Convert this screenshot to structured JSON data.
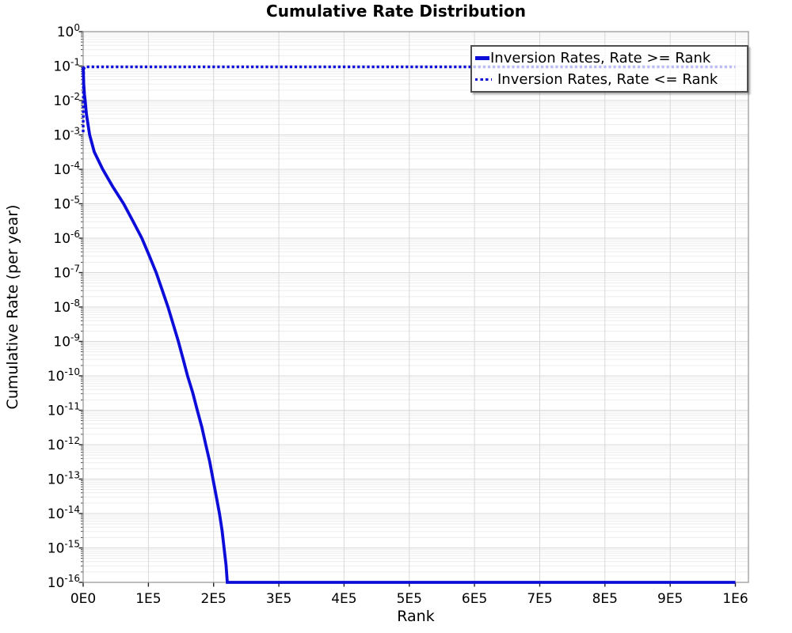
{
  "chart_data": {
    "type": "line",
    "title": "Cumulative Rate Distribution",
    "xlabel": "Rank",
    "ylabel": "Cumulative Rate (per year)",
    "x_axis": {
      "min": 0,
      "max": 1020000,
      "ticks": [
        {
          "value": 0,
          "label": "0E0"
        },
        {
          "value": 100000,
          "label": "1E5"
        },
        {
          "value": 200000,
          "label": "2E5"
        },
        {
          "value": 300000,
          "label": "3E5"
        },
        {
          "value": 400000,
          "label": "4E5"
        },
        {
          "value": 500000,
          "label": "5E5"
        },
        {
          "value": 600000,
          "label": "6E5"
        },
        {
          "value": 700000,
          "label": "7E5"
        },
        {
          "value": 800000,
          "label": "8E5"
        },
        {
          "value": 900000,
          "label": "9E5"
        },
        {
          "value": 1000000,
          "label": "1E6"
        }
      ]
    },
    "y_axis": {
      "scale": "log",
      "base_label": "10",
      "exponents": [
        0,
        -1,
        -2,
        -3,
        -4,
        -5,
        -6,
        -7,
        -8,
        -9,
        -10,
        -11,
        -12,
        -13,
        -14,
        -15,
        -16
      ]
    },
    "grid": {
      "major_color": "#d8d8d8",
      "minor_color": "#ededed",
      "border_color": "#9a9a9a",
      "tick_color": "#222222"
    },
    "legend": {
      "position": "top-right"
    },
    "series": [
      {
        "name": "Inversion Rates, Rate >= Rank",
        "style": "solid",
        "color": "#0d0dd9",
        "points": [
          [
            0,
            0.095
          ],
          [
            800,
            0.03
          ],
          [
            2000,
            0.015
          ],
          [
            3200,
            0.0095
          ],
          [
            5000,
            0.004
          ],
          [
            10000,
            0.001
          ],
          [
            17000,
            0.00032
          ],
          [
            30000,
            0.0001
          ],
          [
            45000,
            3.2e-05
          ],
          [
            62000,
            1e-05
          ],
          [
            76000,
            3.2e-06
          ],
          [
            90000,
            1e-06
          ],
          [
            101000,
            3.2e-07
          ],
          [
            112000,
            1e-07
          ],
          [
            121000,
            3.2e-08
          ],
          [
            130000,
            1e-08
          ],
          [
            138000,
            3.2e-09
          ],
          [
            146000,
            1e-09
          ],
          [
            153000,
            3.2e-10
          ],
          [
            160000,
            1e-10
          ],
          [
            168000,
            3.2e-11
          ],
          [
            175000,
            1e-11
          ],
          [
            182000,
            3.2e-12
          ],
          [
            188000,
            1e-12
          ],
          [
            194000,
            3.2e-13
          ],
          [
            199000,
            1e-13
          ],
          [
            204000,
            3.2e-14
          ],
          [
            209000,
            1e-14
          ],
          [
            213000,
            3.2e-15
          ],
          [
            216000,
            1e-15
          ],
          [
            219000,
            3.2e-16
          ],
          [
            221000,
            1e-16
          ],
          [
            1000000,
            1e-16
          ]
        ]
      },
      {
        "name": "Inversion Rates, Rate <= Rank",
        "style": "dotted",
        "color": "#0d0dd9",
        "points": [
          [
            0,
            0.0012
          ],
          [
            400,
            0.04
          ],
          [
            900,
            0.08
          ],
          [
            2000,
            0.093
          ],
          [
            5000,
            0.095
          ],
          [
            1000000,
            0.095
          ]
        ]
      }
    ]
  }
}
